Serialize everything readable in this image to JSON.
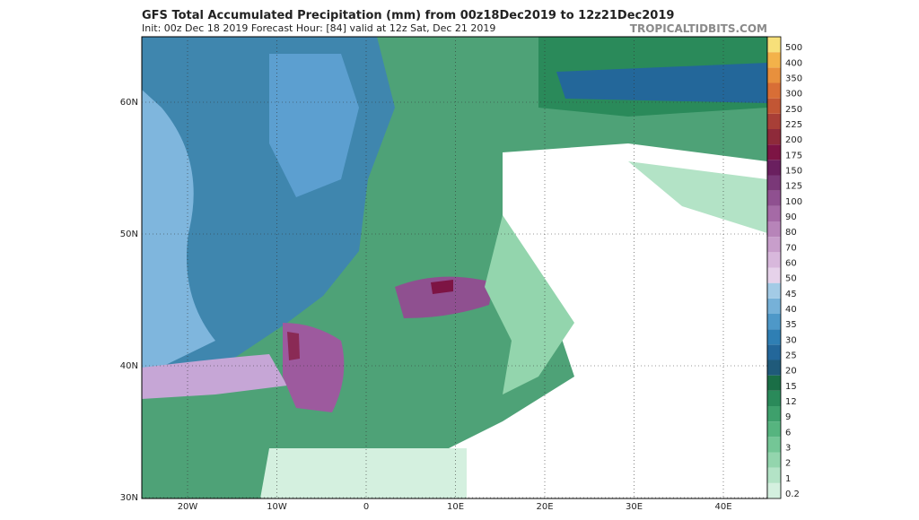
{
  "header": {
    "title": "GFS Total Accumulated Precipitation (mm) from 00z18Dec2019 to 12z21Dec2019",
    "subtitle": "Init: 00z Dec 18 2019   Forecast Hour: [84]   valid at 12z Sat, Dec 21 2019",
    "site": "TROPICALTIDBITS.COM"
  },
  "map": {
    "lat_labels": [
      "60N",
      "50N",
      "40N",
      "30N"
    ],
    "lon_labels": [
      "20W",
      "10W",
      "0",
      "10E",
      "20E",
      "30E",
      "40E"
    ]
  },
  "colorbar": {
    "levels": [
      0.2,
      1,
      2,
      3,
      6,
      9,
      12,
      15,
      20,
      25,
      30,
      35,
      40,
      45,
      50,
      60,
      70,
      80,
      90,
      100,
      125,
      150,
      175,
      200,
      225,
      250,
      300,
      350,
      400,
      500
    ],
    "colors": [
      "#d4f0df",
      "#b3e3c6",
      "#93d5ad",
      "#74c696",
      "#56b47f",
      "#3ea06c",
      "#2a8a5a",
      "#1a6e46",
      "#1f5a7a",
      "#23679a",
      "#2f7fb4",
      "#4e98c8",
      "#76b1d8",
      "#a3cbe6",
      "#e6d2ea",
      "#d8b8dc",
      "#c89ecb",
      "#b784b9",
      "#a56aa6",
      "#8f5090",
      "#7a3878",
      "#6a1f5f",
      "#7d1444",
      "#8e2a3a",
      "#a83f37",
      "#c25634",
      "#d86e36",
      "#e8903d",
      "#f3b24a",
      "#f7e07a"
    ]
  }
}
